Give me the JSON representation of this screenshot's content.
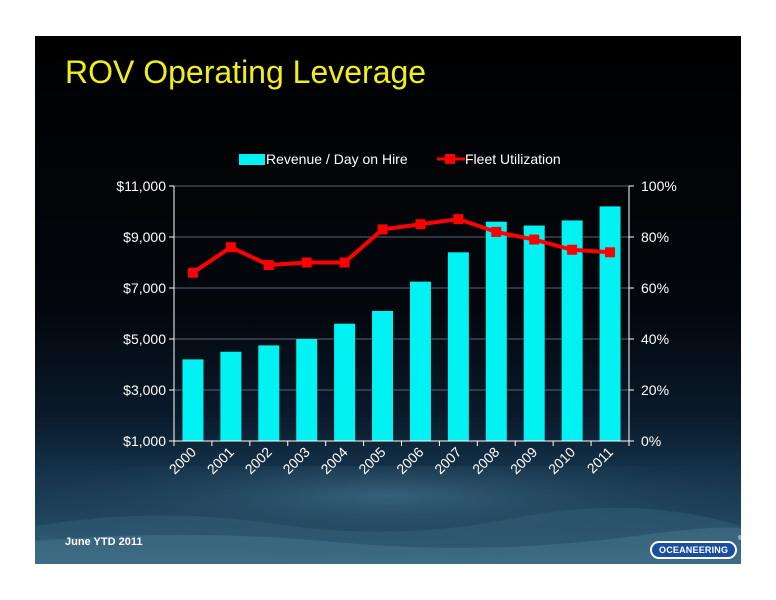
{
  "slide": {
    "title": "ROV Operating Leverage",
    "footer_note": "June YTD 2011",
    "logo_text": "OCEANEERING",
    "logo_mark": "®"
  },
  "colors": {
    "title": "#f2ee1a",
    "bar": "#00f2f2",
    "line": "#ff0000",
    "text": "#ffffff"
  },
  "chart_data": {
    "type": "bar",
    "categories": [
      "2000",
      "2001",
      "2002",
      "2003",
      "2004",
      "2005",
      "2006",
      "2007",
      "2008",
      "2009",
      "2010",
      "2011"
    ],
    "series": [
      {
        "name": "Revenue / Day on Hire",
        "type": "bar",
        "axis": "left",
        "values": [
          4200,
          4500,
          4750,
          5000,
          5600,
          6100,
          7250,
          8400,
          9600,
          9450,
          9650,
          10200
        ]
      },
      {
        "name": "Fleet Utilization",
        "type": "line",
        "axis": "right",
        "values": [
          66,
          76,
          69,
          70,
          70,
          83,
          85,
          87,
          82,
          79,
          75,
          74
        ]
      }
    ],
    "y_left": {
      "min": 1000,
      "max": 11000,
      "ticks": [
        "$1,000",
        "$3,000",
        "$5,000",
        "$7,000",
        "$9,000",
        "$11,000"
      ]
    },
    "y_right": {
      "min": 0,
      "max": 100,
      "ticks": [
        "0%",
        "20%",
        "40%",
        "60%",
        "80%",
        "100%"
      ]
    },
    "grid": true,
    "legend": "top"
  }
}
